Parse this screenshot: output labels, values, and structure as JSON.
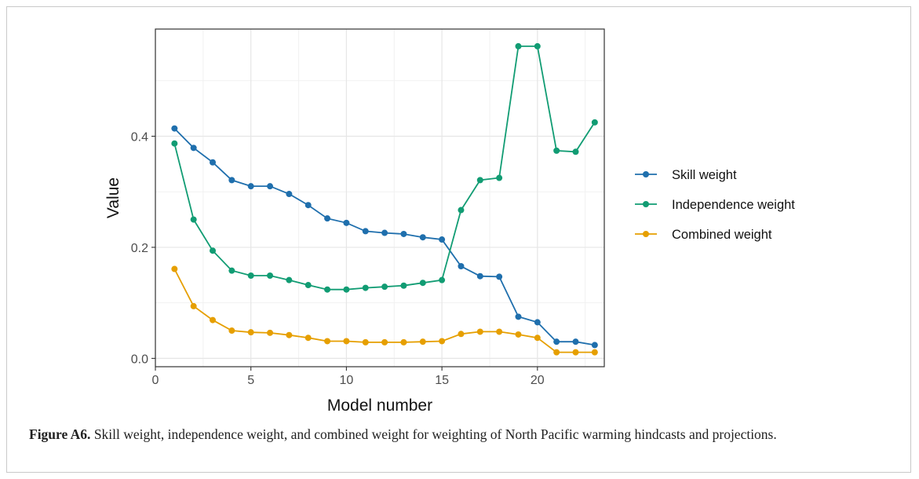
{
  "chart_data": {
    "type": "line",
    "xlabel": "Model number",
    "ylabel": "Value",
    "xlim": [
      0,
      23.5
    ],
    "ylim": [
      -0.015,
      0.593
    ],
    "x_ticks": [
      0,
      5,
      10,
      15,
      20
    ],
    "y_ticks": [
      0.0,
      0.2,
      0.4
    ],
    "x_tick_labels": [
      "0",
      "5",
      "10",
      "15",
      "20"
    ],
    "y_tick_labels": [
      "0.0",
      "0.2",
      "0.4"
    ],
    "grid": true,
    "legend_position": "right",
    "x": [
      1,
      2,
      3,
      4,
      5,
      6,
      7,
      8,
      9,
      10,
      11,
      12,
      13,
      14,
      15,
      16,
      17,
      18,
      19,
      20,
      21,
      22,
      23
    ],
    "series": [
      {
        "name": "Skill weight",
        "color": "#1f6fad",
        "values": [
          0.414,
          0.379,
          0.353,
          0.321,
          0.31,
          0.31,
          0.296,
          0.276,
          0.252,
          0.244,
          0.229,
          0.226,
          0.224,
          0.218,
          0.214,
          0.166,
          0.148,
          0.147,
          0.075,
          0.065,
          0.03,
          0.03,
          0.024
        ]
      },
      {
        "name": "Independence weight",
        "color": "#119c73",
        "values": [
          0.387,
          0.25,
          0.194,
          0.158,
          0.149,
          0.149,
          0.141,
          0.132,
          0.124,
          0.124,
          0.127,
          0.129,
          0.131,
          0.136,
          0.141,
          0.267,
          0.321,
          0.325,
          0.562,
          0.562,
          0.374,
          0.372,
          0.425
        ]
      },
      {
        "name": "Combined weight",
        "color": "#e69f00",
        "values": [
          0.161,
          0.094,
          0.069,
          0.05,
          0.047,
          0.046,
          0.042,
          0.037,
          0.031,
          0.031,
          0.029,
          0.029,
          0.029,
          0.03,
          0.031,
          0.044,
          0.048,
          0.048,
          0.043,
          0.037,
          0.011,
          0.011,
          0.011
        ]
      }
    ]
  },
  "caption": {
    "label": "Figure A6.",
    "text": " Skill weight, independence weight, and combined weight for weighting of North Pacific warming hindcasts and projections."
  }
}
